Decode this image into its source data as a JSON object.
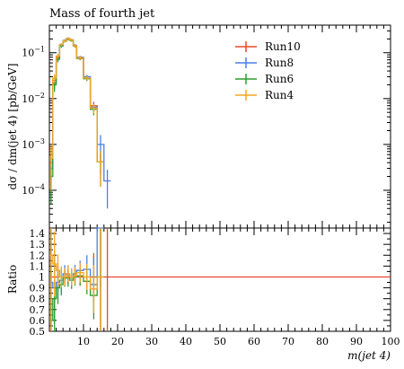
{
  "chart_data": [
    {
      "panel": "main",
      "type": "line",
      "title": "Mass of fourth jet",
      "xlabel": "",
      "ylabel": "dσ / dm(jet 4) [pb/GeV]",
      "xlim": [
        0,
        100
      ],
      "ylim": [
        1.5e-05,
        0.4
      ],
      "yscale": "log",
      "grid": false,
      "legend_position": "top-right",
      "y_tick_labels": [
        "10^{-4}",
        "10^{-3}",
        "10^{-2}",
        "10^{-1}"
      ],
      "y_ticks": [
        0.0001,
        0.001,
        0.01,
        0.1
      ],
      "bin_edges": [
        0,
        1,
        2,
        3,
        4,
        5,
        6,
        7,
        8,
        10,
        12,
        14,
        16,
        18
      ],
      "series": [
        {
          "name": "Run10",
          "color": "#e8492a",
          "values": [
            0.0004,
            0.025,
            0.08,
            0.15,
            0.18,
            0.2,
            0.19,
            0.14,
            0.075,
            0.028,
            0.007,
            0.00042,
            null
          ],
          "errors": [
            0.0003,
            0.006,
            0.01,
            0.012,
            0.012,
            0.013,
            0.012,
            0.01,
            0.006,
            0.003,
            0.0015,
            0.0002,
            null
          ]
        },
        {
          "name": "Run8",
          "color": "#4a7fe6",
          "values": [
            0.0003,
            0.022,
            0.075,
            0.145,
            0.185,
            0.205,
            0.19,
            0.145,
            0.08,
            0.03,
            0.0065,
            0.001,
            0.00016
          ],
          "errors": [
            0.0002,
            0.006,
            0.01,
            0.012,
            0.012,
            0.013,
            0.012,
            0.01,
            0.006,
            0.003,
            0.0015,
            0.0006,
            0.00012
          ]
        },
        {
          "name": "Run6",
          "color": "#2e9e2e",
          "values": [
            0.0002,
            0.02,
            0.072,
            0.14,
            0.178,
            0.198,
            0.185,
            0.14,
            0.076,
            0.027,
            0.0058,
            0.00042,
            null
          ],
          "errors": [
            0.00015,
            0.006,
            0.01,
            0.012,
            0.012,
            0.013,
            0.012,
            0.01,
            0.006,
            0.003,
            0.0015,
            0.0003,
            null
          ]
        },
        {
          "name": "Run4",
          "color": "#f5a623",
          "values": [
            0.0005,
            0.028,
            0.085,
            0.15,
            0.18,
            0.205,
            0.19,
            0.142,
            0.078,
            0.028,
            0.0062,
            0.00042,
            null
          ],
          "errors": [
            0.0004,
            0.006,
            0.01,
            0.012,
            0.012,
            0.013,
            0.012,
            0.01,
            0.006,
            0.003,
            0.0015,
            0.0003,
            null
          ]
        }
      ]
    },
    {
      "panel": "ratio",
      "type": "line",
      "title": "",
      "xlabel": "m(jet 4)",
      "ylabel": "Ratio",
      "xlim": [
        0,
        100
      ],
      "ylim": [
        0.5,
        1.45
      ],
      "grid": false,
      "x_ticks": [
        10,
        20,
        30,
        40,
        50,
        60,
        70,
        80,
        90,
        100
      ],
      "y_ticks": [
        0.5,
        0.6,
        0.7,
        0.8,
        0.9,
        1.0,
        1.1,
        1.2,
        1.3,
        1.4
      ],
      "y_tick_labels": [
        "0.5",
        "0.6",
        "0.7",
        "0.8",
        "0.9",
        "1",
        "1.1",
        "1.2",
        "1.3",
        "1.4"
      ],
      "bin_edges": [
        0,
        1,
        2,
        3,
        4,
        5,
        6,
        7,
        8,
        10,
        12,
        14,
        16,
        18
      ],
      "series": [
        {
          "name": "Run10",
          "color": "#e8492a",
          "values": [
            1,
            1,
            1,
            1,
            1,
            1,
            1,
            1,
            1,
            1,
            1,
            1,
            1
          ],
          "errors": [
            0.7,
            0.24,
            0.13,
            0.08,
            0.07,
            0.07,
            0.07,
            0.07,
            0.08,
            0.11,
            0.22,
            0.5,
            0.5
          ]
        },
        {
          "name": "Run8",
          "color": "#4a7fe6",
          "values": [
            0.95,
            0.9,
            0.95,
            0.97,
            1.03,
            1.02,
            1.0,
            1.03,
            1.06,
            1.07,
            0.93,
            2.3,
            null
          ],
          "errors": [
            0.6,
            0.3,
            0.15,
            0.1,
            0.08,
            0.08,
            0.08,
            0.08,
            0.09,
            0.13,
            0.25,
            1.4,
            null
          ]
        },
        {
          "name": "Run6",
          "color": "#2e9e2e",
          "values": [
            0.6,
            0.8,
            0.9,
            0.93,
            0.99,
            0.99,
            0.97,
            1.0,
            1.01,
            0.96,
            0.83,
            1.0,
            null
          ],
          "errors": [
            0.5,
            0.3,
            0.15,
            0.1,
            0.08,
            0.08,
            0.08,
            0.08,
            0.09,
            0.12,
            0.22,
            0.7,
            null
          ]
        },
        {
          "name": "Run4",
          "color": "#f5a623",
          "values": [
            1.2,
            1.12,
            1.06,
            1.0,
            1.0,
            1.03,
            1.0,
            1.01,
            1.04,
            1.0,
            0.89,
            1.0,
            null
          ],
          "errors": [
            0.7,
            0.3,
            0.15,
            0.1,
            0.08,
            0.08,
            0.08,
            0.08,
            0.09,
            0.12,
            0.22,
            0.7,
            null
          ]
        }
      ]
    }
  ]
}
